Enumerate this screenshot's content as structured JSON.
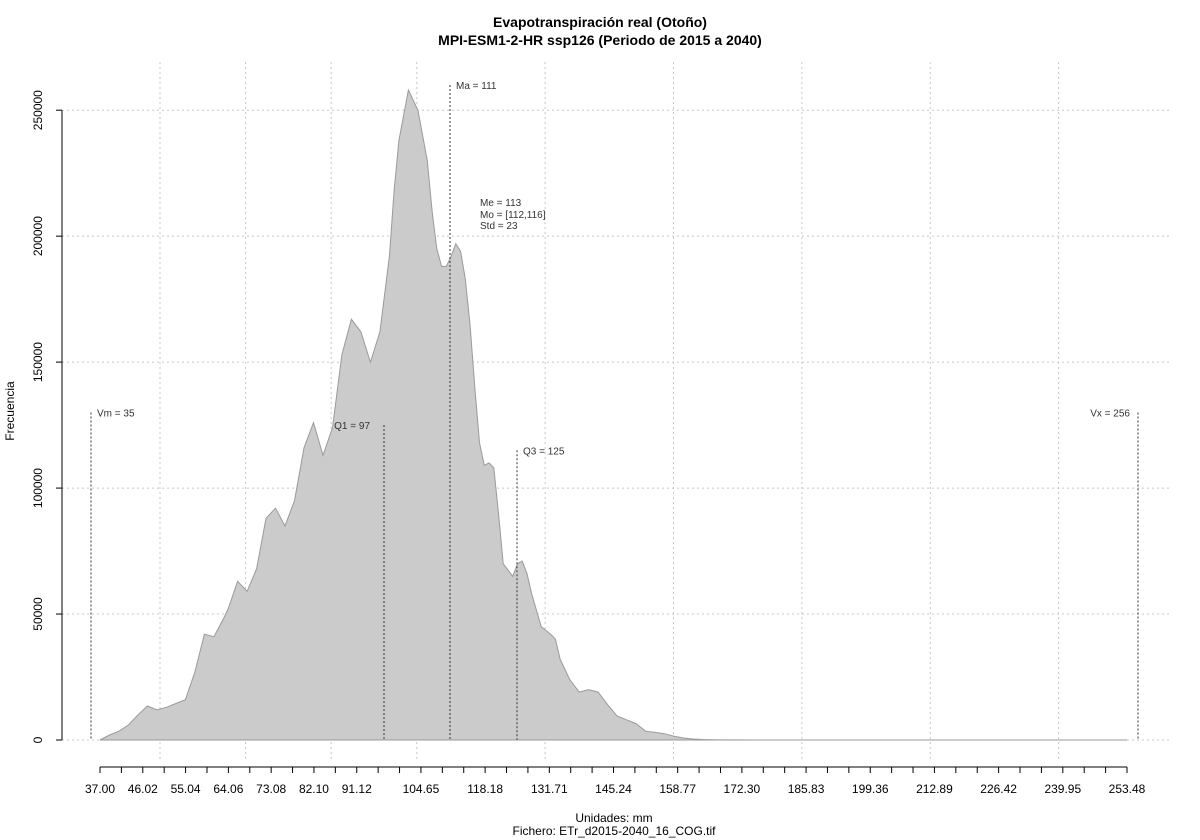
{
  "chart_data": {
    "type": "area",
    "title": "Evapotranspiración real (Otoño)",
    "subtitle": "MPI-ESM1-2-HR ssp126 (Periodo de 2015 a 2040)",
    "xlabel": "Unidades: mm",
    "ylabel": "Frecuencia",
    "caption": "Fichero: ETr_d2015-2040_16_COG.tif",
    "xlim": [
      37.0,
      253.48
    ],
    "ylim": [
      0,
      260000
    ],
    "grid": true,
    "x_ticks": [
      37.0,
      46.02,
      55.04,
      64.06,
      73.08,
      82.1,
      91.12,
      104.65,
      118.18,
      131.71,
      145.24,
      158.77,
      172.3,
      185.83,
      199.36,
      212.89,
      226.42,
      239.95,
      253.48
    ],
    "x_tick_labels": [
      "37.00",
      "46.02",
      "55.04",
      "64.06",
      "73.08",
      "82.10",
      "91.12",
      "104.65",
      "118.18",
      "131.71",
      "145.24",
      "158.77",
      "172.30",
      "185.83",
      "199.36",
      "212.89",
      "226.42",
      "239.95",
      "253.48"
    ],
    "x_minor_ticks": [
      41.51,
      50.53,
      59.55,
      68.57,
      77.59,
      86.61,
      95.63,
      100.14,
      109.16,
      113.67,
      122.69,
      127.2,
      136.22,
      140.73,
      149.75,
      154.26,
      163.28,
      167.79,
      176.81,
      181.32,
      190.34,
      194.85,
      203.87,
      208.38,
      217.4,
      221.91,
      230.93,
      235.44,
      244.46,
      248.97
    ],
    "y_ticks": [
      0,
      50000,
      100000,
      150000,
      200000,
      250000
    ],
    "y_tick_labels": [
      "0",
      "50000",
      "100000",
      "150000",
      "200000",
      "250000"
    ],
    "series": [
      {
        "x": [
          37,
          39,
          41,
          43,
          45,
          47,
          49,
          51,
          53,
          55,
          57,
          59,
          61,
          63,
          64,
          66,
          68,
          70,
          72,
          74,
          76,
          78,
          80,
          82,
          84,
          86,
          88,
          90,
          92,
          94,
          96,
          98,
          99,
          100,
          102,
          104,
          106,
          107,
          108,
          109,
          110,
          111,
          112,
          113,
          114,
          115,
          116,
          117,
          118,
          119,
          120,
          121,
          122,
          124,
          125,
          126,
          127,
          128,
          130,
          132,
          133,
          134,
          136,
          138,
          140,
          142,
          144,
          146,
          148,
          150,
          152,
          154,
          156,
          158,
          160,
          162,
          164,
          166,
          168,
          170,
          175,
          180,
          185,
          190,
          200,
          220,
          240,
          253.48
        ],
        "y": [
          0,
          2000,
          3500,
          6000,
          10000,
          13500,
          12000,
          13000,
          14500,
          16000,
          27000,
          42000,
          41000,
          48000,
          52000,
          63000,
          59000,
          68000,
          88000,
          92000,
          85000,
          95000,
          116000,
          126000,
          113000,
          124000,
          153000,
          167000,
          162000,
          150000,
          162000,
          192000,
          218000,
          238000,
          258000,
          250000,
          230000,
          210000,
          195000,
          188000,
          188000,
          192000,
          197000,
          194000,
          183000,
          165000,
          140000,
          118000,
          109000,
          110000,
          108000,
          90000,
          70000,
          65000,
          70000,
          71000,
          66000,
          58000,
          45000,
          42000,
          40000,
          32000,
          24000,
          19000,
          20000,
          19000,
          14000,
          9500,
          8000,
          6500,
          3500,
          3000,
          2500,
          1500,
          800,
          400,
          200,
          100,
          50,
          20,
          0,
          0,
          0,
          0,
          0,
          0,
          0,
          0
        ]
      }
    ],
    "markers": [
      {
        "label": "Vm = 35",
        "x": 35.0,
        "y": 130000
      },
      {
        "label": "Q1 = 97",
        "x": 97.0,
        "y": 125000
      },
      {
        "label": "Ma = 111",
        "x": 111.0,
        "y": 260000
      },
      {
        "label": "Q3 = 125",
        "x": 125.0,
        "y": 115000
      },
      {
        "label": "Vx = 256",
        "x": 256.0,
        "y": 130000
      }
    ],
    "stats": {
      "me": "Me = 113",
      "mo": "Mo = [112,116]",
      "std": "Std = 23"
    }
  }
}
